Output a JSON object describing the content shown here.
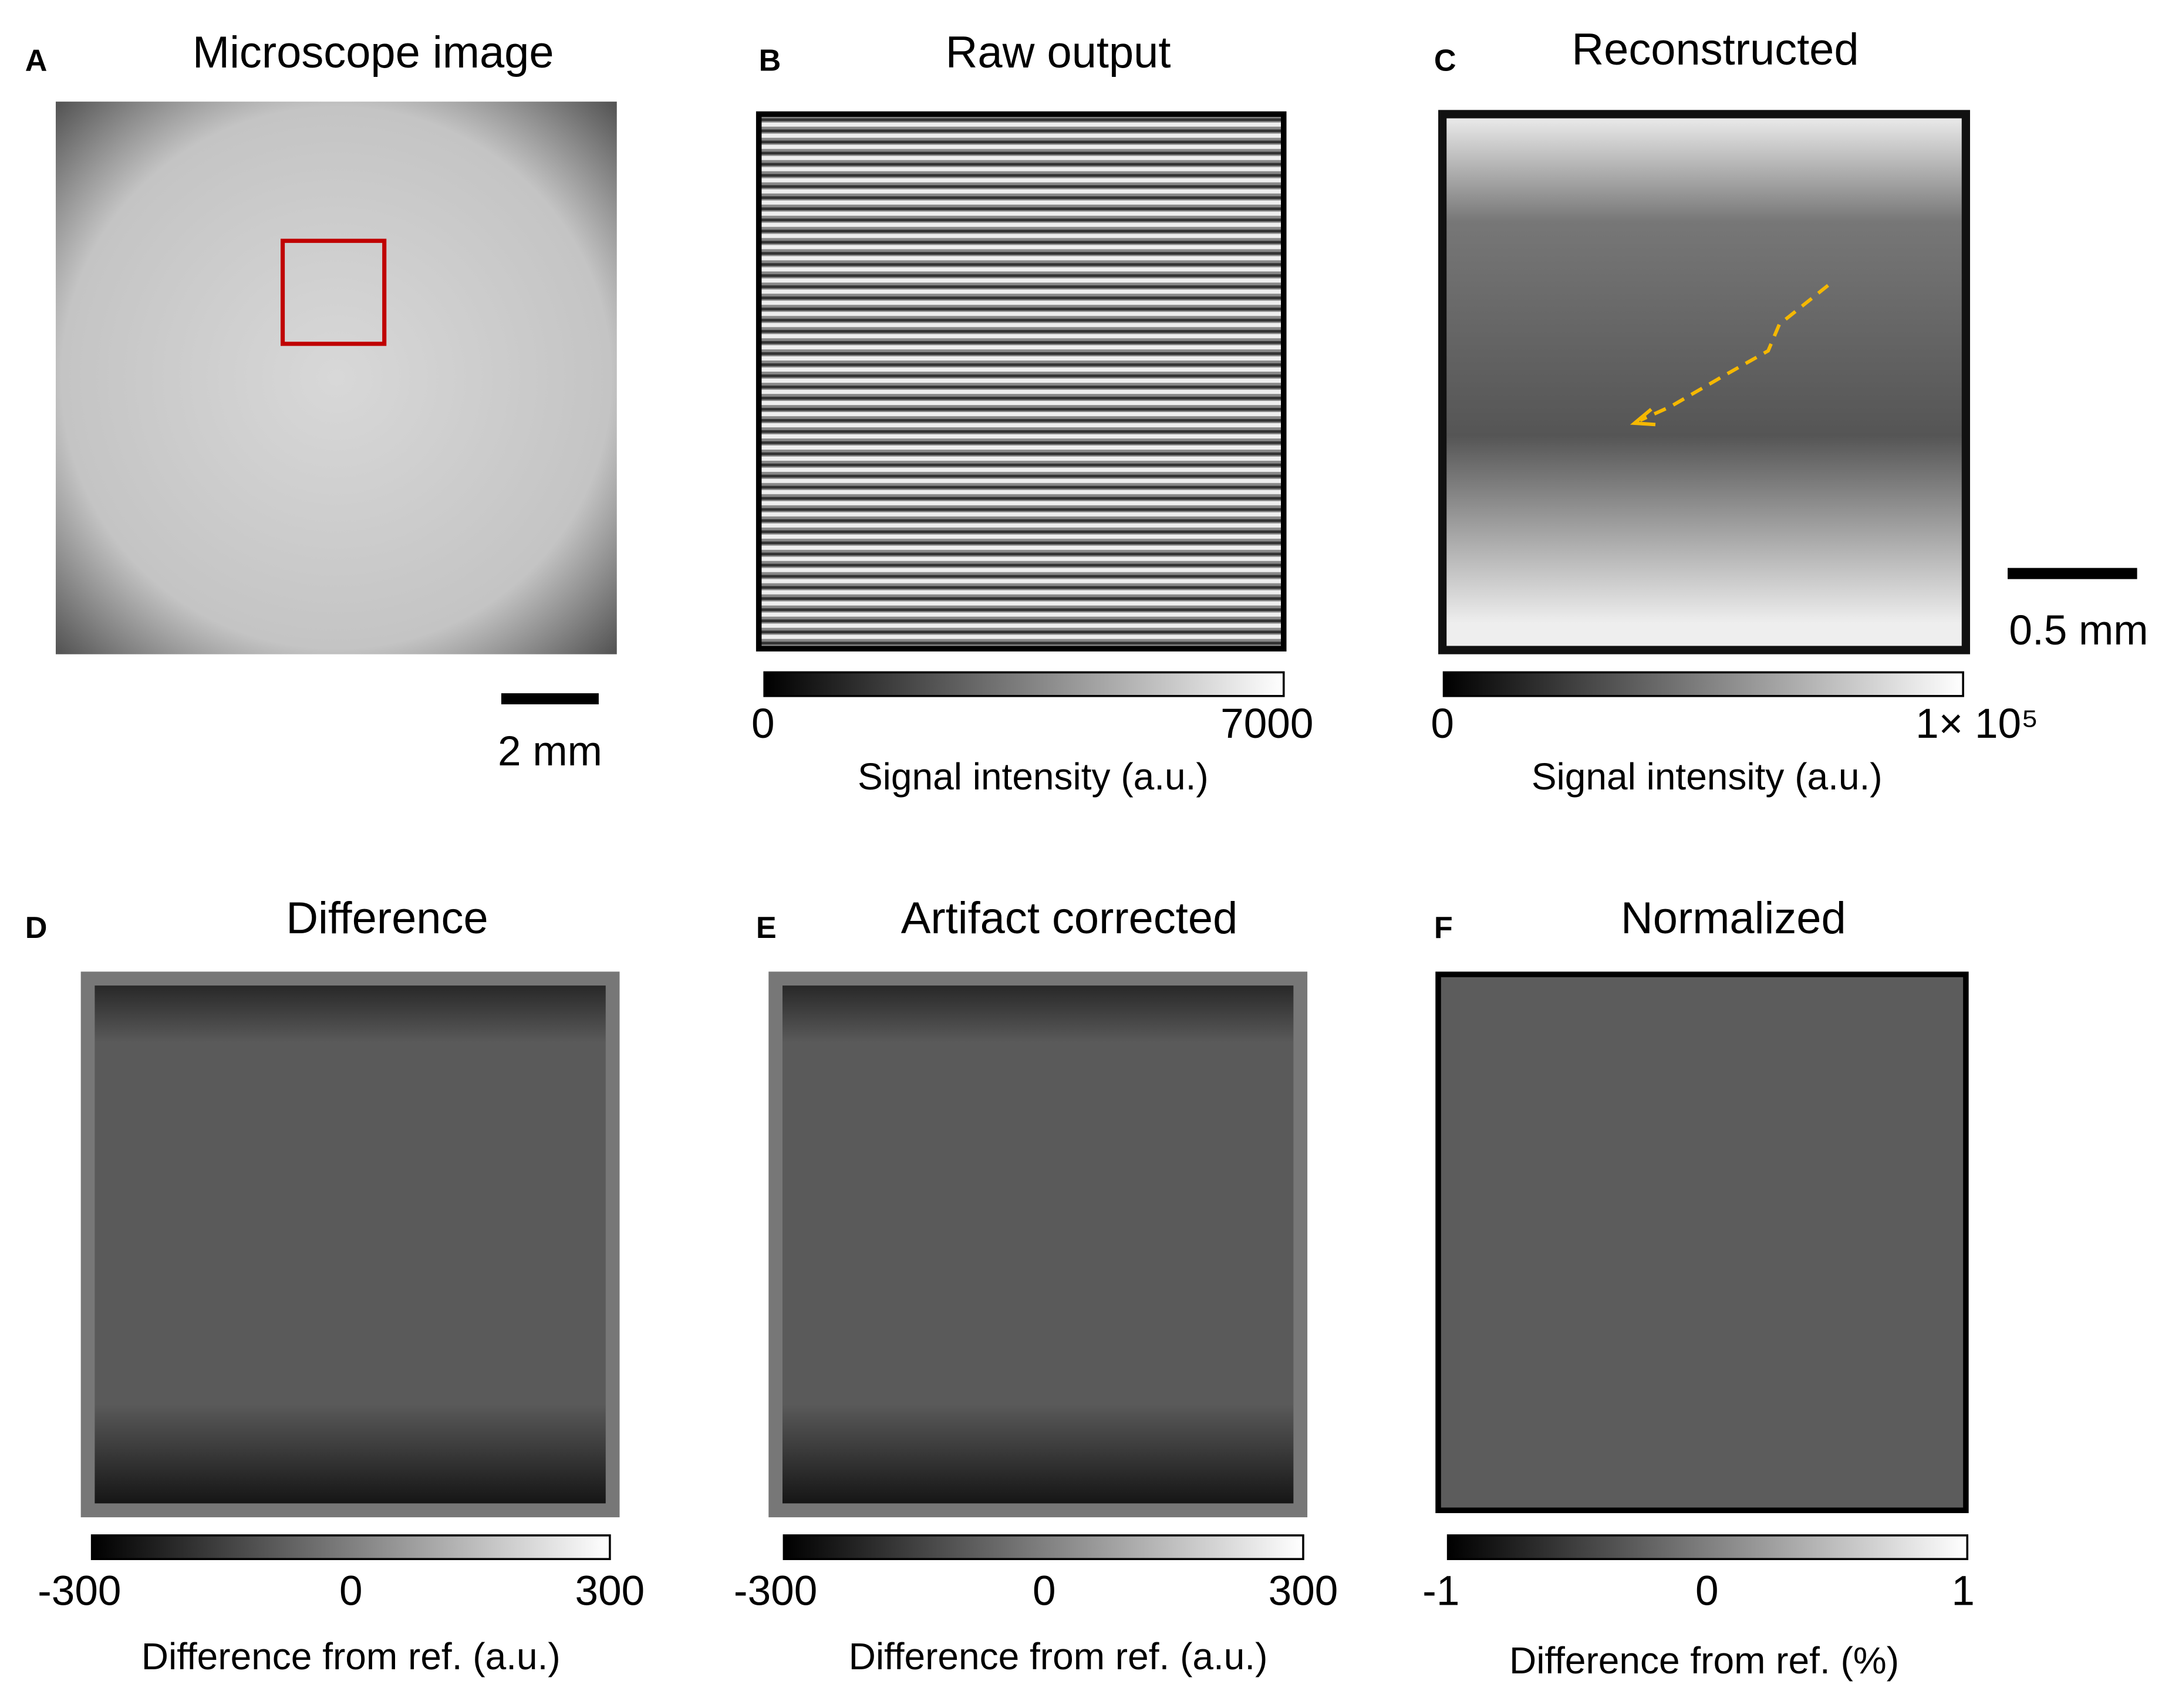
{
  "panels": [
    {
      "label": "A",
      "title": "Microscope image",
      "scale_bar": "2 mm"
    },
    {
      "label": "B",
      "title": "Raw output",
      "colorbar": {
        "ticks": [
          0,
          7000
        ],
        "label": "Signal intensity (a.u.)"
      }
    },
    {
      "label": "C",
      "title": "Reconstructed",
      "scale_bar": "0.5 mm",
      "colorbar": {
        "ticks": [
          0,
          "1× 10⁵"
        ],
        "label": "Signal intensity (a.u.)"
      }
    },
    {
      "label": "D",
      "title": "Difference",
      "colorbar": {
        "ticks": [
          -300,
          0,
          300
        ],
        "label": "Difference from ref. (a.u.)"
      }
    },
    {
      "label": "E",
      "title": "Artifact corrected",
      "colorbar": {
        "ticks": [
          -300,
          0,
          300
        ],
        "label": "Difference from ref. (a.u.)"
      }
    },
    {
      "label": "F",
      "title": "Normalized",
      "colorbar": {
        "ticks": [
          -1,
          0,
          1
        ],
        "label": "Difference from ref. (%)"
      }
    }
  ]
}
